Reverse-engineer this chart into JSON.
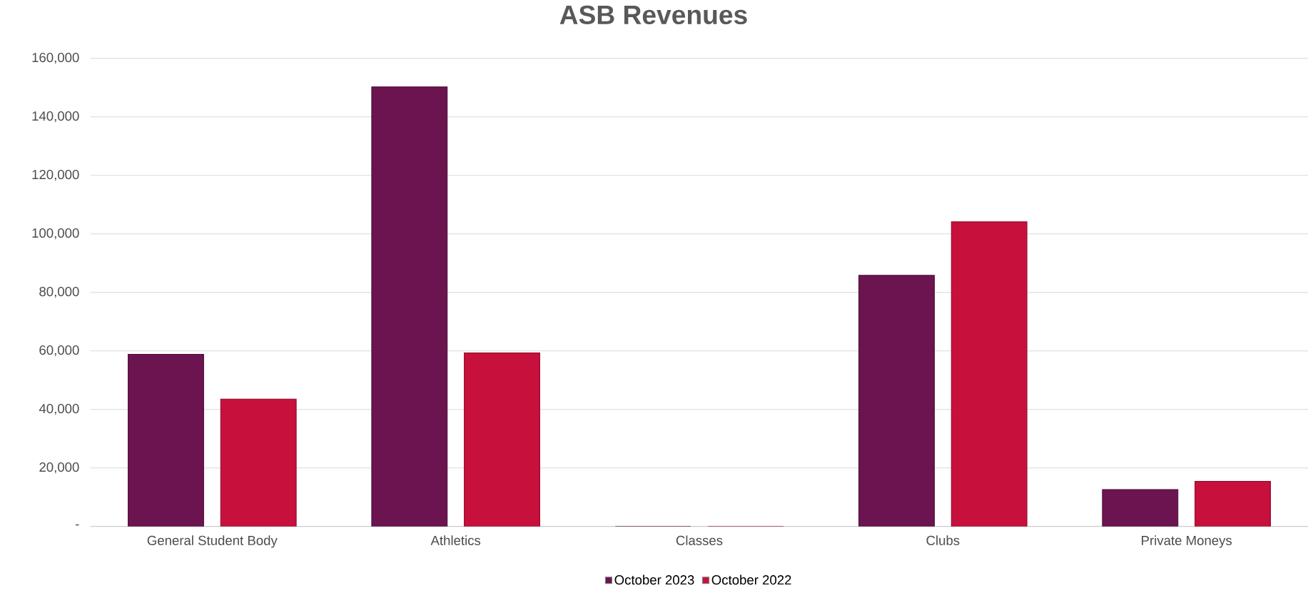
{
  "chart_data": {
    "type": "bar",
    "title": "ASB Revenues",
    "categories": [
      "General Student Body",
      "Athletics",
      "Classes",
      "Clubs",
      "Private Moneys"
    ],
    "series": [
      {
        "name": "October 2023",
        "color": "#6b1450",
        "values": [
          58800,
          150200,
          0,
          85800,
          12600
        ]
      },
      {
        "name": "October 2022",
        "color": "#c8103c",
        "values": [
          43500,
          59300,
          0,
          104100,
          15400
        ]
      }
    ],
    "ylim": [
      0,
      160000
    ],
    "yticks": [
      {
        "value": 0,
        "label": "-"
      },
      {
        "value": 20000,
        "label": "20,000"
      },
      {
        "value": 40000,
        "label": "40,000"
      },
      {
        "value": 60000,
        "label": "60,000"
      },
      {
        "value": 80000,
        "label": "80,000"
      },
      {
        "value": 100000,
        "label": "100,000"
      },
      {
        "value": 120000,
        "label": "120,000"
      },
      {
        "value": 140000,
        "label": "140,000"
      },
      {
        "value": 160000,
        "label": "160,000"
      }
    ],
    "grid": "y",
    "legend": "bottom"
  }
}
